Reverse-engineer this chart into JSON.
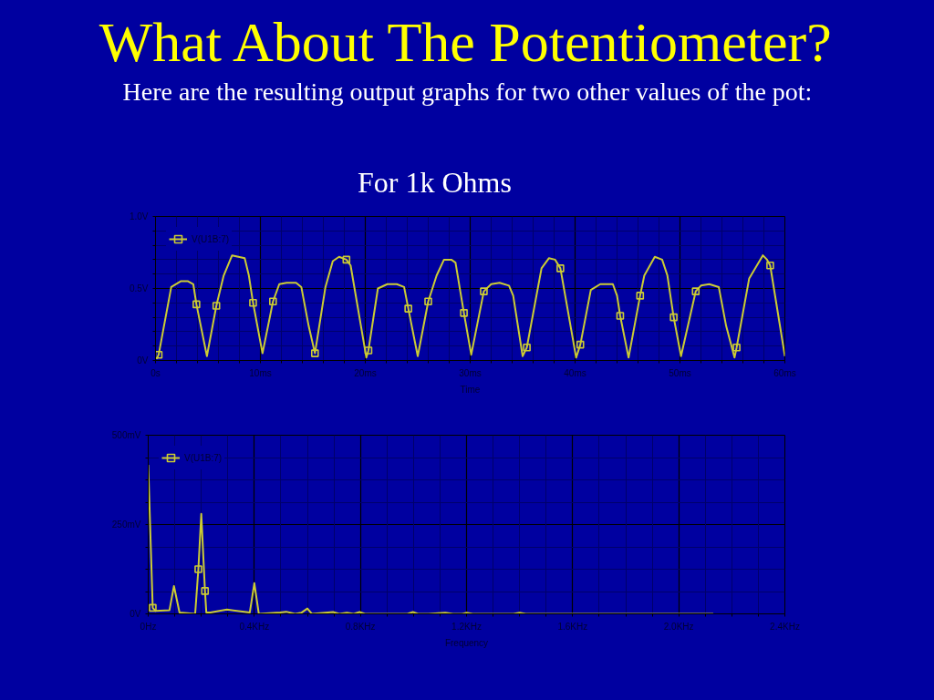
{
  "chart_data": [
    {
      "type": "line",
      "title": "What About The Potentiometer?",
      "subtitle": "Here are the resulting output graphs for two other values of the pot:",
      "annotations": [
        "For 1k Ohms"
      ],
      "xlabel": "Time",
      "x": [
        0.1,
        0.3,
        1.5,
        2.4,
        3.1,
        3.6,
        3.9,
        4.9,
        5.8,
        6.5,
        7.3,
        7.9,
        8.5,
        8.9,
        9.3,
        10.2,
        11.2,
        11.8,
        12.5,
        13.4,
        13.9,
        14.6,
        15.2,
        16.2,
        16.9,
        17.5,
        18.2,
        18.6,
        20.1,
        20.3,
        21.2,
        22.1,
        23.0,
        23.7,
        24.1,
        25.0,
        26.0,
        26.8,
        27.5,
        28.2,
        28.6,
        29.4,
        30.1,
        31.3,
        32.0,
        32.8,
        33.7,
        34.1,
        35.0,
        35.4,
        36.8,
        37.5,
        38.1,
        38.6,
        40.1,
        40.5,
        41.5,
        42.4,
        43.6,
        44.0,
        44.3,
        45.1,
        46.2,
        46.6,
        47.6,
        48.3,
        48.8,
        49.4,
        50.1,
        51.5,
        52.0,
        52.8,
        53.7,
        54.4,
        55.2,
        55.4,
        56.6,
        57.9,
        58.3,
        58.6,
        60.0
      ],
      "series": [
        {
          "name": "V(U1B:7)",
          "color": "#cccc33",
          "values": [
            0.01,
            0.04,
            0.51,
            0.55,
            0.55,
            0.53,
            0.39,
            0.03,
            0.38,
            0.59,
            0.73,
            0.72,
            0.71,
            0.59,
            0.4,
            0.05,
            0.41,
            0.53,
            0.54,
            0.54,
            0.51,
            0.24,
            0.05,
            0.51,
            0.69,
            0.72,
            0.7,
            0.66,
            0.02,
            0.07,
            0.5,
            0.53,
            0.53,
            0.51,
            0.36,
            0.03,
            0.41,
            0.59,
            0.7,
            0.7,
            0.68,
            0.33,
            0.04,
            0.48,
            0.53,
            0.54,
            0.52,
            0.45,
            0.03,
            0.09,
            0.64,
            0.71,
            0.7,
            0.64,
            0.02,
            0.11,
            0.49,
            0.53,
            0.53,
            0.45,
            0.31,
            0.02,
            0.45,
            0.59,
            0.72,
            0.7,
            0.59,
            0.3,
            0.03,
            0.48,
            0.52,
            0.53,
            0.51,
            0.24,
            0.02,
            0.09,
            0.57,
            0.73,
            0.7,
            0.66,
            0.03
          ]
        },
        {
          "type": "scatter",
          "marker": "square",
          "color": "#cccc33",
          "x": [
            0.3,
            3.9,
            5.8,
            9.3,
            11.2,
            15.2,
            18.2,
            20.3,
            24.1,
            26.0,
            29.4,
            31.3,
            35.4,
            38.6,
            40.5,
            44.3,
            46.2,
            49.4,
            51.5,
            55.4,
            58.6
          ],
          "values": [
            0.04,
            0.39,
            0.38,
            0.4,
            0.41,
            0.05,
            0.7,
            0.07,
            0.36,
            0.41,
            0.33,
            0.48,
            0.09,
            0.64,
            0.11,
            0.31,
            0.45,
            0.3,
            0.48,
            0.09,
            0.66
          ]
        }
      ],
      "xlim": [
        0,
        60
      ],
      "ylim": [
        0,
        1.0
      ],
      "xticks": [
        {
          "value": 0,
          "label": "0s"
        },
        {
          "value": 2,
          "label": null
        },
        {
          "value": 4,
          "label": null
        },
        {
          "value": 6,
          "label": null
        },
        {
          "value": 8,
          "label": null
        },
        {
          "value": 10,
          "label": "10ms"
        },
        {
          "value": 12,
          "label": null
        },
        {
          "value": 14,
          "label": null
        },
        {
          "value": 16,
          "label": null
        },
        {
          "value": 18,
          "label": null
        },
        {
          "value": 20,
          "label": "20ms"
        },
        {
          "value": 22,
          "label": null
        },
        {
          "value": 24,
          "label": null
        },
        {
          "value": 26,
          "label": null
        },
        {
          "value": 28,
          "label": null
        },
        {
          "value": 30,
          "label": "30ms"
        },
        {
          "value": 32,
          "label": null
        },
        {
          "value": 34,
          "label": null
        },
        {
          "value": 36,
          "label": null
        },
        {
          "value": 38,
          "label": null
        },
        {
          "value": 40,
          "label": "40ms"
        },
        {
          "value": 42,
          "label": null
        },
        {
          "value": 44,
          "label": null
        },
        {
          "value": 46,
          "label": null
        },
        {
          "value": 48,
          "label": null
        },
        {
          "value": 50,
          "label": "50ms"
        },
        {
          "value": 52,
          "label": null
        },
        {
          "value": 54,
          "label": null
        },
        {
          "value": 56,
          "label": null
        },
        {
          "value": 58,
          "label": null
        },
        {
          "value": 60,
          "label": "60ms"
        }
      ],
      "yticks": [
        {
          "value": 0,
          "label": "0V"
        },
        {
          "value": 0.1,
          "label": null
        },
        {
          "value": 0.2,
          "label": null
        },
        {
          "value": 0.3,
          "label": null
        },
        {
          "value": 0.4,
          "label": null
        },
        {
          "value": 0.5,
          "label": "0.5V"
        },
        {
          "value": 0.6,
          "label": null
        },
        {
          "value": 0.7,
          "label": null
        },
        {
          "value": 0.8,
          "label": null
        },
        {
          "value": 0.9,
          "label": null
        },
        {
          "value": 1.0,
          "label": "1.0V"
        }
      ],
      "grid": true,
      "legend": "top left"
    },
    {
      "type": "line",
      "xlabel": "Frequency",
      "x": [
        0,
        0.017,
        0.028,
        0.08,
        0.097,
        0.118,
        0.177,
        0.189,
        0.2,
        0.214,
        0.219,
        0.234,
        0.297,
        0.383,
        0.4,
        0.417,
        0.497,
        0.52,
        0.554,
        0.577,
        0.6,
        0.617,
        0.697,
        0.72,
        0.749,
        0.775,
        0.797,
        0.817,
        0.977,
        0.998,
        1.017,
        1.057,
        1.12,
        1.149,
        1.183,
        1.2,
        1.223,
        1.377,
        1.4,
        1.423,
        2.13
      ],
      "series": [
        {
          "name": "V(U1B:7)",
          "color": "#cccc33",
          "values": [
            417,
            17,
            8,
            10,
            78,
            4,
            0,
            125,
            280,
            64,
            4,
            4,
            12,
            4,
            86,
            0,
            4,
            6,
            0,
            3,
            15,
            0,
            5,
            0,
            3,
            0,
            5,
            0,
            0,
            5,
            0,
            0,
            3,
            0,
            0,
            3,
            0,
            0,
            3,
            0,
            0
          ]
        },
        {
          "type": "scatter",
          "marker": "square",
          "color": "#cccc33",
          "x": [
            0.017,
            0.189,
            0.214
          ],
          "values": [
            17,
            125,
            64
          ]
        }
      ],
      "xlim": [
        0,
        2.4
      ],
      "ylim": [
        0,
        500
      ],
      "xticks": [
        {
          "value": 0,
          "label": "0Hz"
        },
        {
          "value": 0.1,
          "label": null
        },
        {
          "value": 0.2,
          "label": null
        },
        {
          "value": 0.3,
          "label": null
        },
        {
          "value": 0.4,
          "label": "0.4KHz"
        },
        {
          "value": 0.5,
          "label": null
        },
        {
          "value": 0.6,
          "label": null
        },
        {
          "value": 0.7,
          "label": null
        },
        {
          "value": 0.8,
          "label": "0.8KHz"
        },
        {
          "value": 0.9,
          "label": null
        },
        {
          "value": 1.0,
          "label": null
        },
        {
          "value": 1.1,
          "label": null
        },
        {
          "value": 1.2,
          "label": "1.2KHz"
        },
        {
          "value": 1.3,
          "label": null
        },
        {
          "value": 1.4,
          "label": null
        },
        {
          "value": 1.5,
          "label": null
        },
        {
          "value": 1.6,
          "label": "1.6KHz"
        },
        {
          "value": 1.7,
          "label": null
        },
        {
          "value": 1.8,
          "label": null
        },
        {
          "value": 1.9,
          "label": null
        },
        {
          "value": 2.0,
          "label": "2.0KHz"
        },
        {
          "value": 2.1,
          "label": null
        },
        {
          "value": 2.2,
          "label": null
        },
        {
          "value": 2.3,
          "label": null
        },
        {
          "value": 2.4,
          "label": "2.4KHz"
        }
      ],
      "yticks": [
        {
          "value": 0,
          "label": "0V"
        },
        {
          "value": 62.5,
          "label": null
        },
        {
          "value": 125,
          "label": null
        },
        {
          "value": 187.5,
          "label": null
        },
        {
          "value": 250,
          "label": "250mV"
        },
        {
          "value": 312.5,
          "label": null
        },
        {
          "value": 375,
          "label": null
        },
        {
          "value": 437.5,
          "label": null
        },
        {
          "value": 500,
          "label": "500mV"
        }
      ],
      "grid": true,
      "legend": "top left"
    }
  ]
}
